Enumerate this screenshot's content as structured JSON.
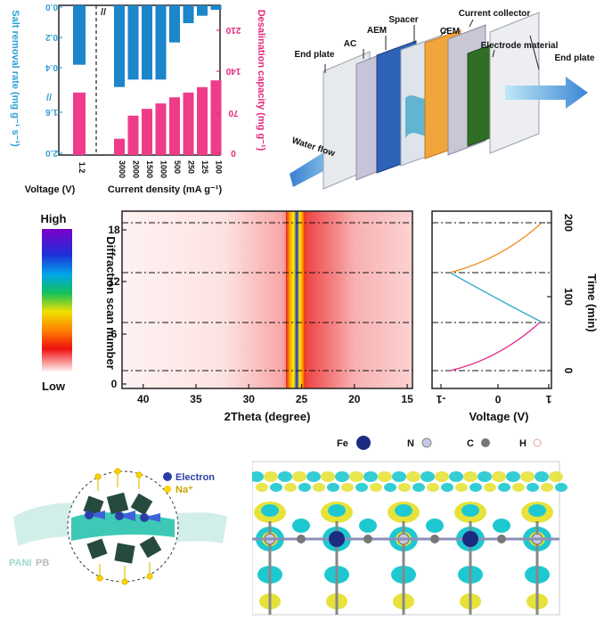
{
  "barchart": {
    "left_axis_label": "Salt removal rate (mg g⁻¹ s⁻¹)",
    "right_axis_label": "Desalination capacity (mg g⁻¹)",
    "left_ticks": [
      "0.0",
      "0.2",
      "0.4",
      "1.6",
      "2.0"
    ],
    "right_ticks": [
      "210",
      "140",
      "70",
      "0"
    ],
    "voltage_label": "Voltage (V)",
    "voltage_tick": "1.2",
    "current_label": "Current density (mA g⁻¹)",
    "current_ticks": [
      "3000",
      "2000",
      "1500",
      "1000",
      "500",
      "250",
      "125",
      "100"
    ],
    "colors": {
      "removal": "#1b86c9",
      "capacity": "#ee3c8a",
      "left_axis": "#2a9fd6",
      "right_axis": "#e6287a"
    }
  },
  "chart_data": [
    {
      "type": "bar",
      "title": "",
      "series": [
        {
          "name": "Voltage",
          "categories": [
            "1.2"
          ],
          "removal_rate": [
            0.4
          ],
          "capacity": [
            92
          ]
        },
        {
          "name": "Current density",
          "categories": [
            "3000",
            "2000",
            "1500",
            "1000",
            "500",
            "250",
            "125",
            "100"
          ],
          "removal_rate": [
            0.55,
            0.5,
            0.5,
            0.5,
            0.25,
            0.12,
            0.07,
            0.03
          ],
          "capacity": [
            24,
            58,
            68,
            76,
            85,
            92,
            100,
            110
          ]
        }
      ],
      "ylim_left": [
        0.0,
        2.0
      ],
      "ylim_right": [
        0,
        210
      ]
    },
    {
      "type": "heatmap",
      "xlabel": "2Theta (degree)",
      "ylabel": "Diffraction scan number",
      "x_ticks": [
        40,
        35,
        30,
        25,
        20,
        15
      ],
      "y_ticks": [
        0,
        6,
        12,
        18
      ],
      "colorbar": {
        "high": "High",
        "low": "Low"
      }
    },
    {
      "type": "line",
      "xlabel": "Voltage (V)",
      "ylabel": "Time (min)",
      "x_ticks": [
        -1,
        0,
        1
      ],
      "y_ticks": [
        0,
        100,
        200
      ]
    }
  ],
  "device": {
    "labels": {
      "end_plate_left": "End plate",
      "ac": "AC",
      "aem": "AEM",
      "spacer": "Spacer",
      "cem": "CEM",
      "current_collector": "Current collector",
      "electrode_material": "Electrode material",
      "end_plate_right": "End plate",
      "water_flow": "Water flow"
    }
  },
  "legend": {
    "fe": "Fe",
    "n": "N",
    "c": "C",
    "h": "H"
  },
  "schematic": {
    "electron": "Electron",
    "na": "Na⁺",
    "pb": "PB",
    "pani": "PANI",
    "electron_symbol": "e"
  }
}
